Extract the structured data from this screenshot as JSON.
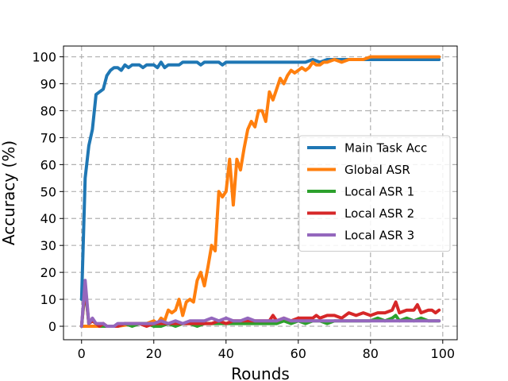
{
  "chart_data": {
    "type": "line",
    "title": "",
    "xlabel": "Rounds",
    "ylabel": "Accuracy (%)",
    "xlim": [
      -5,
      104
    ],
    "ylim": [
      -5,
      104
    ],
    "xticks": [
      0,
      20,
      40,
      60,
      80,
      100
    ],
    "yticks": [
      0,
      10,
      20,
      30,
      40,
      50,
      60,
      70,
      80,
      90,
      100
    ],
    "grid": true,
    "legend_position": "center-right",
    "series": [
      {
        "name": "Main Task Acc",
        "color": "#1f77b4",
        "x": [
          0,
          1,
          2,
          3,
          4,
          5,
          6,
          7,
          8,
          9,
          10,
          11,
          12,
          13,
          14,
          15,
          16,
          17,
          18,
          19,
          20,
          21,
          22,
          23,
          24,
          25,
          26,
          27,
          28,
          29,
          30,
          31,
          32,
          33,
          34,
          35,
          36,
          37,
          38,
          39,
          40,
          42,
          44,
          46,
          48,
          50,
          52,
          54,
          56,
          58,
          60,
          62,
          64,
          66,
          68,
          70,
          72,
          74,
          76,
          78,
          80,
          82,
          84,
          86,
          88,
          90,
          92,
          94,
          96,
          98,
          99
        ],
        "y": [
          10,
          55,
          67,
          73,
          86,
          87,
          88,
          93,
          95,
          96,
          96,
          95,
          97,
          96,
          97,
          97,
          97,
          96,
          97,
          97,
          97,
          96,
          98,
          96,
          97,
          97,
          97,
          97,
          98,
          98,
          98,
          98,
          98,
          97,
          98,
          98,
          98,
          98,
          98,
          97,
          98,
          98,
          98,
          98,
          98,
          98,
          98,
          98,
          98,
          98,
          98,
          98,
          99,
          98,
          99,
          99,
          99,
          99,
          99,
          99,
          99,
          99,
          99,
          99,
          99,
          99,
          99,
          99,
          99,
          99,
          99
        ]
      },
      {
        "name": "Global ASR",
        "color": "#ff7f0e",
        "x": [
          0,
          5,
          10,
          15,
          18,
          20,
          21,
          22,
          23,
          24,
          25,
          26,
          27,
          28,
          29,
          30,
          31,
          32,
          33,
          34,
          35,
          36,
          37,
          38,
          39,
          40,
          41,
          42,
          43,
          44,
          45,
          46,
          47,
          48,
          49,
          50,
          51,
          52,
          53,
          54,
          55,
          56,
          57,
          58,
          59,
          60,
          61,
          62,
          63,
          64,
          65,
          66,
          67,
          68,
          70,
          72,
          74,
          76,
          78,
          80,
          82,
          84,
          86,
          88,
          90,
          95,
          99
        ],
        "y": [
          0,
          0,
          0,
          1,
          1,
          2,
          1,
          3,
          2,
          6,
          5,
          6,
          10,
          4,
          9,
          10,
          9,
          17,
          20,
          15,
          22,
          30,
          28,
          50,
          48,
          50,
          62,
          45,
          62,
          58,
          66,
          73,
          76,
          74,
          80,
          80,
          76,
          87,
          84,
          88,
          92,
          90,
          93,
          95,
          94,
          95,
          96,
          95,
          96,
          98,
          97,
          97,
          98,
          98,
          99,
          98,
          99,
          99,
          99,
          100,
          100,
          100,
          100,
          100,
          100,
          100,
          100
        ]
      },
      {
        "name": "Local ASR 1",
        "color": "#2ca02c",
        "x": [
          0,
          1,
          2,
          3,
          4,
          5,
          6,
          7,
          8,
          9,
          10,
          12,
          14,
          16,
          18,
          20,
          22,
          24,
          26,
          28,
          30,
          32,
          34,
          36,
          38,
          40,
          42,
          44,
          46,
          48,
          50,
          52,
          54,
          56,
          58,
          60,
          62,
          64,
          66,
          68,
          70,
          72,
          74,
          76,
          78,
          80,
          82,
          84,
          86,
          87,
          88,
          90,
          92,
          94,
          96,
          98,
          99
        ],
        "y": [
          0,
          14,
          1,
          2,
          1,
          0,
          0,
          0,
          0,
          0,
          0,
          1,
          0,
          1,
          1,
          0,
          0,
          1,
          0,
          1,
          1,
          0,
          1,
          1,
          1,
          1,
          1,
          1,
          1,
          1,
          1,
          1,
          1,
          2,
          1,
          2,
          1,
          2,
          2,
          1,
          2,
          2,
          2,
          2,
          2,
          2,
          3,
          2,
          3,
          4,
          2,
          3,
          2,
          3,
          2,
          2,
          2
        ]
      },
      {
        "name": "Local ASR 2",
        "color": "#d62728",
        "x": [
          0,
          1,
          2,
          3,
          4,
          5,
          6,
          7,
          8,
          9,
          10,
          12,
          14,
          16,
          18,
          20,
          22,
          24,
          26,
          28,
          30,
          32,
          34,
          36,
          38,
          40,
          42,
          44,
          46,
          48,
          50,
          52,
          53,
          54,
          56,
          58,
          60,
          62,
          64,
          65,
          66,
          68,
          70,
          72,
          74,
          76,
          78,
          80,
          82,
          84,
          86,
          87,
          88,
          90,
          92,
          93,
          94,
          96,
          97,
          98,
          99
        ],
        "y": [
          0,
          15,
          1,
          2,
          1,
          0,
          1,
          0,
          0,
          0,
          0,
          1,
          1,
          1,
          0,
          1,
          1,
          1,
          1,
          1,
          1,
          1,
          1,
          1,
          2,
          1,
          2,
          2,
          2,
          2,
          2,
          2,
          4,
          2,
          3,
          2,
          3,
          3,
          3,
          4,
          3,
          4,
          4,
          3,
          5,
          4,
          5,
          4,
          5,
          5,
          6,
          9,
          5,
          6,
          6,
          8,
          5,
          6,
          6,
          5,
          6
        ]
      },
      {
        "name": "Local ASR 3",
        "color": "#9467bd",
        "x": [
          0,
          1,
          2,
          3,
          4,
          5,
          6,
          7,
          8,
          9,
          10,
          12,
          14,
          16,
          18,
          20,
          22,
          24,
          26,
          28,
          30,
          32,
          34,
          36,
          38,
          40,
          42,
          44,
          46,
          48,
          50,
          52,
          54,
          56,
          58,
          60,
          62,
          64,
          66,
          68,
          70,
          72,
          74,
          76,
          78,
          80,
          82,
          84,
          86,
          88,
          90,
          92,
          94,
          96,
          98,
          99
        ],
        "y": [
          0,
          17,
          1,
          3,
          1,
          1,
          1,
          0,
          0,
          0,
          1,
          1,
          1,
          1,
          1,
          1,
          2,
          1,
          2,
          1,
          2,
          2,
          2,
          3,
          2,
          3,
          2,
          2,
          3,
          2,
          2,
          2,
          2,
          3,
          2,
          2,
          2,
          2,
          2,
          2,
          2,
          2,
          2,
          2,
          2,
          2,
          2,
          2,
          2,
          2,
          2,
          2,
          2,
          2,
          2,
          2
        ]
      }
    ]
  }
}
